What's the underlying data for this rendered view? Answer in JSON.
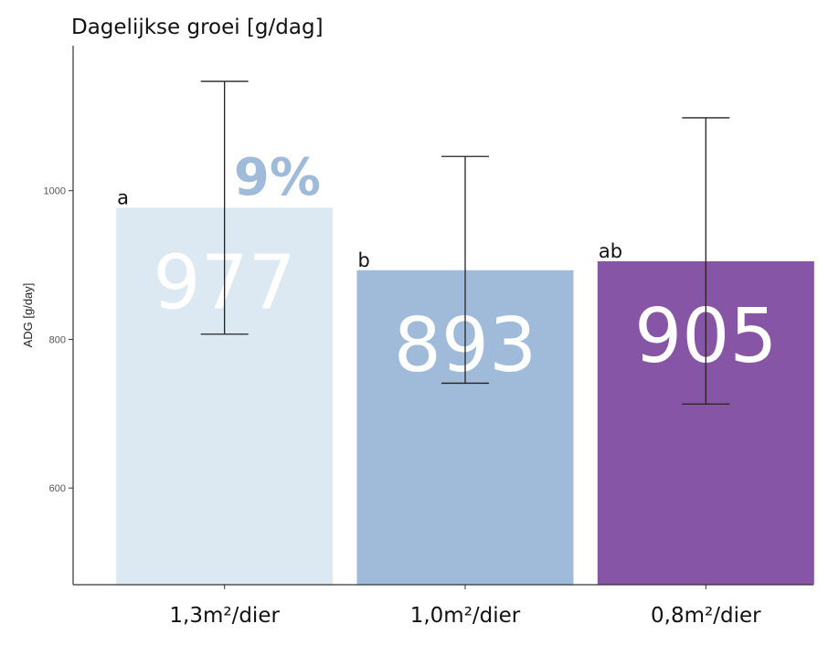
{
  "chart_data": {
    "type": "bar",
    "title": "Dagelijkse groei [g/dag]",
    "ylabel": "ADG [g/day]",
    "xlabel": "",
    "ylim": [
      470,
      1195
    ],
    "yticks": [
      600,
      800,
      1000
    ],
    "grid": false,
    "categories": [
      "1,3m²/dier",
      "1,0m²/dier",
      "0,8m²/dier"
    ],
    "values": [
      977,
      893,
      905
    ],
    "value_labels": [
      "977",
      "893",
      "905"
    ],
    "error_low": [
      807,
      741,
      713
    ],
    "error_high": [
      1147,
      1046,
      1098
    ],
    "letters": [
      "a",
      "b",
      "ab"
    ],
    "colors": [
      "#dde9f2",
      "#9fbbd9",
      "#8655a6"
    ],
    "annotation": "9%"
  }
}
